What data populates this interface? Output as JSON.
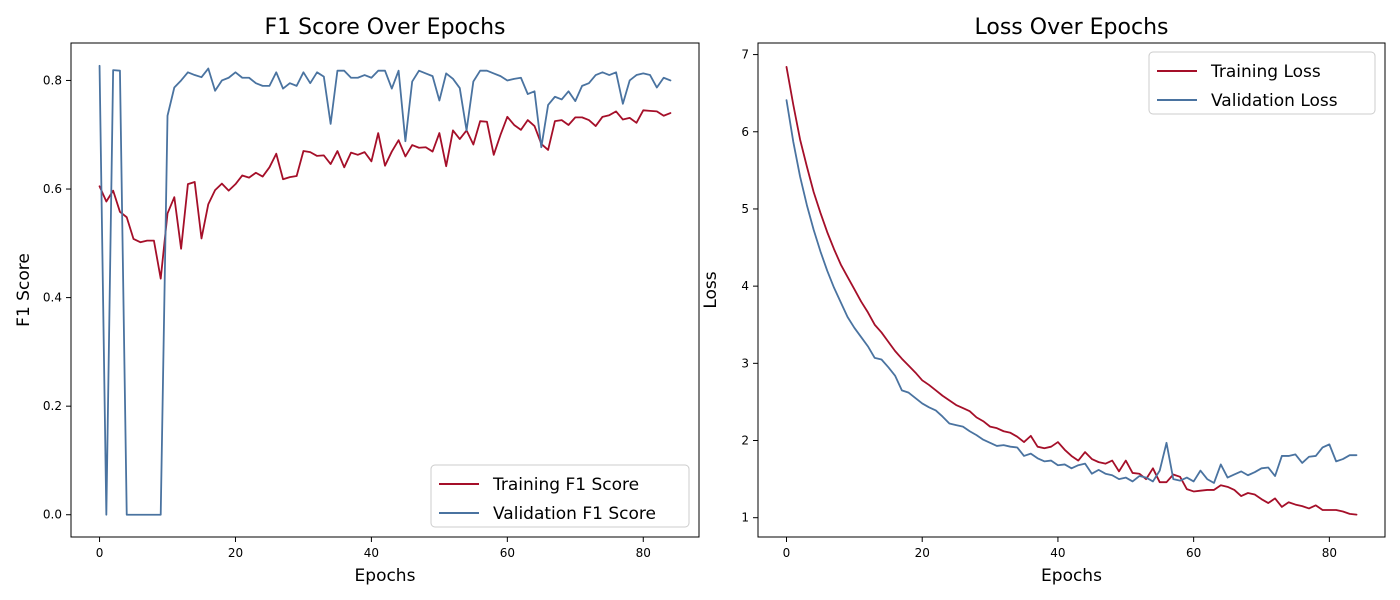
{
  "chart_data": [
    {
      "type": "line",
      "title": "F1 Score Over Epochs",
      "xlabel": "Epochs",
      "ylabel": "F1 Score",
      "xlim": [
        -4.2,
        88.2
      ],
      "ylim": [
        -0.041,
        0.869
      ],
      "xticks": [
        0,
        20,
        40,
        60,
        80
      ],
      "yticks": [
        0.0,
        0.2,
        0.4,
        0.6,
        0.8
      ],
      "ytick_format": 1,
      "grid": false,
      "legend": "lower-right",
      "x": [
        0,
        1,
        2,
        3,
        4,
        5,
        6,
        7,
        8,
        9,
        10,
        11,
        12,
        13,
        14,
        15,
        16,
        17,
        18,
        19,
        20,
        21,
        22,
        23,
        24,
        25,
        26,
        27,
        28,
        29,
        30,
        31,
        32,
        33,
        34,
        35,
        36,
        37,
        38,
        39,
        40,
        41,
        42,
        43,
        44,
        45,
        46,
        47,
        48,
        49,
        50,
        51,
        52,
        53,
        54,
        55,
        56,
        57,
        58,
        59,
        60,
        61,
        62,
        63,
        64,
        65,
        66,
        67,
        68,
        69,
        70,
        71,
        72,
        73,
        74,
        75,
        76,
        77,
        78,
        79,
        80,
        81,
        82,
        83,
        84
      ],
      "series": [
        {
          "name": "Training F1 Score",
          "color": "#A50F29",
          "values": [
            0.605,
            0.577,
            0.597,
            0.558,
            0.548,
            0.508,
            0.502,
            0.505,
            0.505,
            0.435,
            0.555,
            0.585,
            0.49,
            0.609,
            0.613,
            0.509,
            0.572,
            0.598,
            0.61,
            0.597,
            0.609,
            0.625,
            0.621,
            0.63,
            0.623,
            0.64,
            0.665,
            0.618,
            0.622,
            0.624,
            0.67,
            0.668,
            0.661,
            0.662,
            0.646,
            0.67,
            0.64,
            0.667,
            0.663,
            0.668,
            0.651,
            0.703,
            0.643,
            0.669,
            0.69,
            0.66,
            0.681,
            0.676,
            0.677,
            0.669,
            0.703,
            0.642,
            0.708,
            0.692,
            0.708,
            0.682,
            0.725,
            0.724,
            0.663,
            0.7,
            0.733,
            0.718,
            0.709,
            0.727,
            0.716,
            0.683,
            0.672,
            0.725,
            0.727,
            0.718,
            0.732,
            0.732,
            0.727,
            0.716,
            0.733,
            0.736,
            0.743,
            0.728,
            0.731,
            0.722,
            0.745,
            0.744,
            0.743,
            0.735,
            0.74
          ]
        },
        {
          "name": "Validation F1 Score",
          "color": "#4A73A0",
          "values": [
            0.827,
            0.0,
            0.819,
            0.818,
            0.0,
            0.0,
            0.0,
            0.0,
            0.0,
            0.0,
            0.735,
            0.787,
            0.8,
            0.815,
            0.81,
            0.806,
            0.822,
            0.781,
            0.8,
            0.805,
            0.815,
            0.805,
            0.805,
            0.795,
            0.79,
            0.79,
            0.815,
            0.785,
            0.795,
            0.79,
            0.815,
            0.795,
            0.815,
            0.807,
            0.72,
            0.818,
            0.818,
            0.805,
            0.805,
            0.81,
            0.805,
            0.818,
            0.818,
            0.785,
            0.818,
            0.688,
            0.798,
            0.818,
            0.813,
            0.808,
            0.763,
            0.813,
            0.803,
            0.786,
            0.708,
            0.798,
            0.818,
            0.818,
            0.813,
            0.808,
            0.8,
            0.803,
            0.805,
            0.775,
            0.78,
            0.677,
            0.755,
            0.77,
            0.765,
            0.78,
            0.762,
            0.79,
            0.795,
            0.81,
            0.815,
            0.81,
            0.815,
            0.757,
            0.8,
            0.81,
            0.813,
            0.81,
            0.787,
            0.805,
            0.8
          ]
        }
      ]
    },
    {
      "type": "line",
      "title": "Loss Over Epochs",
      "xlabel": "Epochs",
      "ylabel": "Loss",
      "xlim": [
        -4.2,
        88.2
      ],
      "ylim": [
        0.75,
        7.15
      ],
      "xticks": [
        0,
        20,
        40,
        60,
        80
      ],
      "yticks": [
        1,
        2,
        3,
        4,
        5,
        6,
        7
      ],
      "ytick_format": 0,
      "grid": false,
      "legend": "upper-right",
      "x": [
        0,
        1,
        2,
        3,
        4,
        5,
        6,
        7,
        8,
        9,
        10,
        11,
        12,
        13,
        14,
        15,
        16,
        17,
        18,
        19,
        20,
        21,
        22,
        23,
        24,
        25,
        26,
        27,
        28,
        29,
        30,
        31,
        32,
        33,
        34,
        35,
        36,
        37,
        38,
        39,
        40,
        41,
        42,
        43,
        44,
        45,
        46,
        47,
        48,
        49,
        50,
        51,
        52,
        53,
        54,
        55,
        56,
        57,
        58,
        59,
        60,
        61,
        62,
        63,
        64,
        65,
        66,
        67,
        68,
        69,
        70,
        71,
        72,
        73,
        74,
        75,
        76,
        77,
        78,
        79,
        80,
        81,
        82,
        83,
        84
      ],
      "series": [
        {
          "name": "Training Loss",
          "color": "#A50F29",
          "values": [
            6.84,
            6.35,
            5.9,
            5.55,
            5.22,
            4.95,
            4.7,
            4.48,
            4.28,
            4.12,
            3.96,
            3.8,
            3.66,
            3.5,
            3.4,
            3.28,
            3.16,
            3.06,
            2.97,
            2.88,
            2.78,
            2.72,
            2.65,
            2.58,
            2.52,
            2.46,
            2.42,
            2.38,
            2.3,
            2.25,
            2.18,
            2.16,
            2.12,
            2.1,
            2.05,
            1.98,
            2.06,
            1.92,
            1.9,
            1.92,
            1.98,
            1.88,
            1.8,
            1.74,
            1.85,
            1.76,
            1.72,
            1.7,
            1.74,
            1.6,
            1.74,
            1.58,
            1.57,
            1.5,
            1.64,
            1.46,
            1.46,
            1.56,
            1.53,
            1.37,
            1.34,
            1.35,
            1.36,
            1.36,
            1.42,
            1.4,
            1.36,
            1.28,
            1.32,
            1.3,
            1.24,
            1.19,
            1.25,
            1.14,
            1.2,
            1.17,
            1.15,
            1.12,
            1.16,
            1.1,
            1.1,
            1.1,
            1.08,
            1.05,
            1.04
          ]
        },
        {
          "name": "Validation Loss",
          "color": "#4A73A0",
          "values": [
            6.41,
            5.87,
            5.42,
            5.05,
            4.73,
            4.45,
            4.2,
            3.98,
            3.79,
            3.6,
            3.46,
            3.34,
            3.22,
            3.07,
            3.05,
            2.95,
            2.84,
            2.65,
            2.62,
            2.55,
            2.48,
            2.43,
            2.39,
            2.31,
            2.22,
            2.2,
            2.18,
            2.12,
            2.07,
            2.01,
            1.97,
            1.93,
            1.94,
            1.92,
            1.91,
            1.8,
            1.83,
            1.77,
            1.73,
            1.74,
            1.68,
            1.69,
            1.64,
            1.68,
            1.7,
            1.57,
            1.62,
            1.57,
            1.55,
            1.5,
            1.52,
            1.47,
            1.54,
            1.52,
            1.47,
            1.61,
            1.97,
            1.5,
            1.48,
            1.52,
            1.47,
            1.61,
            1.5,
            1.45,
            1.69,
            1.52,
            1.56,
            1.6,
            1.55,
            1.59,
            1.64,
            1.65,
            1.54,
            1.8,
            1.8,
            1.82,
            1.71,
            1.79,
            1.8,
            1.91,
            1.95,
            1.73,
            1.76,
            1.81,
            1.81
          ]
        }
      ]
    }
  ]
}
